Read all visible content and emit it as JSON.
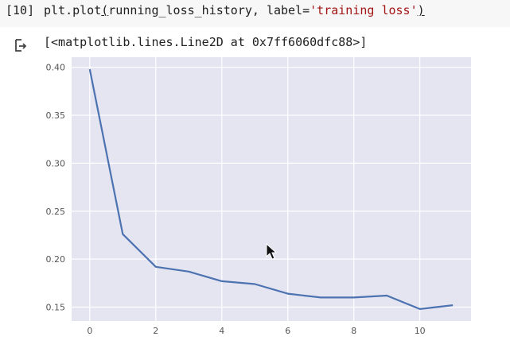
{
  "cell": {
    "execution_count": "[10]",
    "code_prefix": "plt.plot",
    "code_open_paren": "(",
    "code_args": "running_loss_history, label=",
    "code_string": "'training loss'",
    "code_close_paren": ")",
    "output_text": "[<matplotlib.lines.Line2D at 0x7ff6060dfc88>]"
  },
  "icons": {
    "output": "output-arrow-icon",
    "cursor": "mouse-pointer-icon"
  },
  "colors": {
    "plot_background": "#e5e5f2",
    "line": "#4c72b0",
    "grid": "#ffffff"
  },
  "chart_data": {
    "type": "line",
    "x": [
      0,
      1,
      2,
      3,
      4,
      5,
      6,
      7,
      8,
      9,
      10,
      11
    ],
    "series": [
      {
        "values": [
          0.398,
          0.226,
          0.192,
          0.187,
          0.177,
          0.174,
          0.164,
          0.16,
          0.16,
          0.162,
          0.148,
          0.152
        ]
      }
    ],
    "xticks": [
      0,
      2,
      4,
      6,
      8,
      10
    ],
    "yticks": [
      0.15,
      0.2,
      0.25,
      0.3,
      0.35,
      0.4
    ],
    "ytick_labels": [
      "0.15",
      "0.20",
      "0.25",
      "0.30",
      "0.35",
      "0.40"
    ],
    "xlim": [
      -0.55,
      11.55
    ],
    "ylim": [
      0.1355,
      0.4105
    ],
    "grid": true,
    "title": "",
    "xlabel": "",
    "ylabel": ""
  }
}
